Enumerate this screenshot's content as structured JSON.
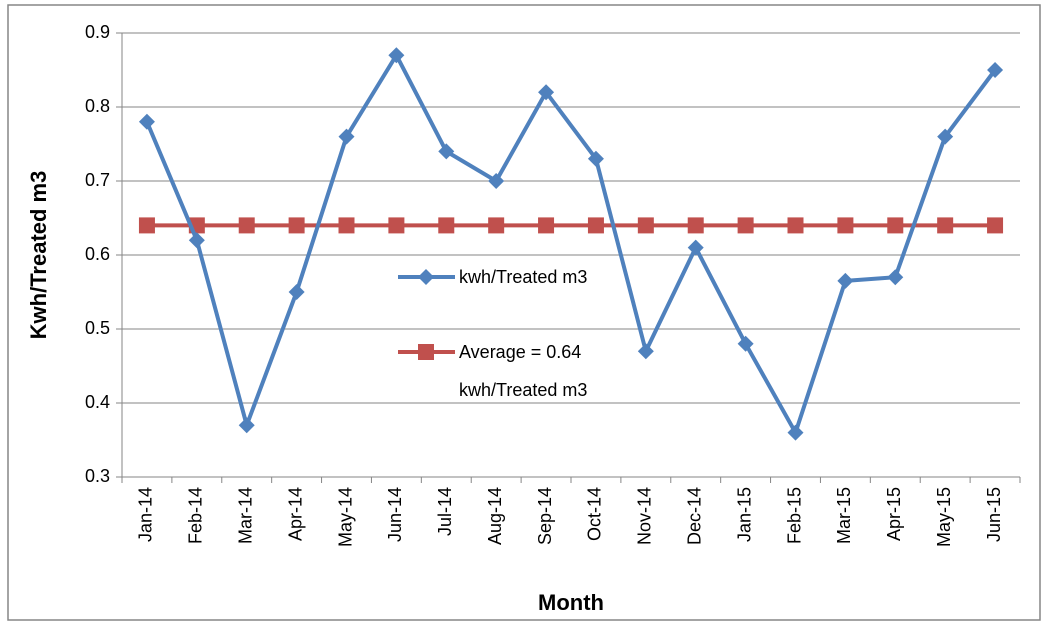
{
  "chart_data": {
    "type": "line",
    "x_label": "Month",
    "y_label": "Kwh/Treated m3",
    "categories": [
      "Jan-14",
      "Feb-14",
      "Mar-14",
      "Apr-14",
      "May-14",
      "Jun-14",
      "Jul-14",
      "Aug-14",
      "Sep-14",
      "Oct-14",
      "Nov-14",
      "Dec-14",
      "Jan-15",
      "Feb-15",
      "Mar-15",
      "Apr-15",
      "May-15",
      "Jun-15"
    ],
    "series": [
      {
        "name": "kwh/Treated m3",
        "color": "#4f81bd",
        "marker": "diamond",
        "values": [
          0.78,
          0.62,
          0.37,
          0.55,
          0.76,
          0.87,
          0.74,
          0.7,
          0.82,
          0.73,
          0.47,
          0.61,
          0.48,
          0.36,
          0.565,
          0.57,
          0.76,
          0.85
        ]
      },
      {
        "name": "Average = 0.64 kwh/Treated m3",
        "color": "#c0504d",
        "marker": "square",
        "values": [
          0.64,
          0.64,
          0.64,
          0.64,
          0.64,
          0.64,
          0.64,
          0.64,
          0.64,
          0.64,
          0.64,
          0.64,
          0.64,
          0.64,
          0.64,
          0.64,
          0.64,
          0.64
        ]
      }
    ],
    "ylim": [
      0.3,
      0.9
    ],
    "yticks": [
      0.3,
      0.4,
      0.5,
      0.6,
      0.7,
      0.8,
      0.9
    ],
    "grid": true,
    "legend": "center"
  }
}
